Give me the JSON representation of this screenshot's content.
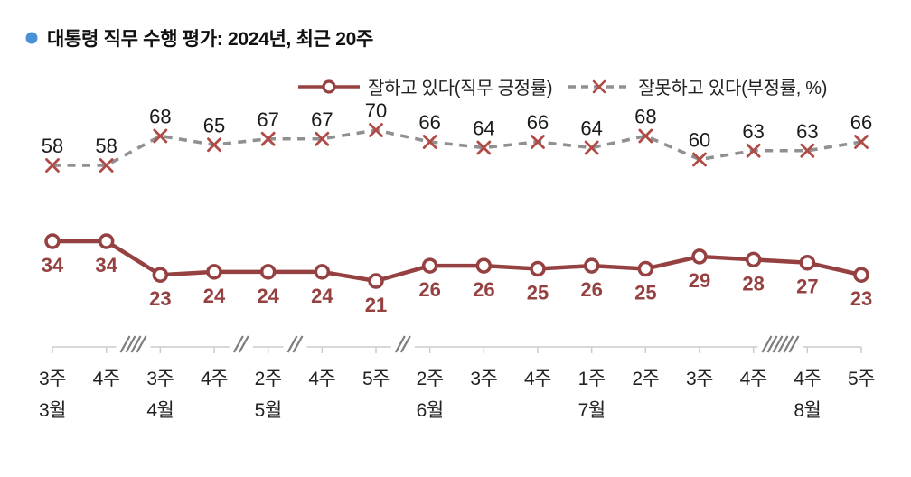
{
  "header": {
    "title": "대통령 직무 수행 평가: 2024년, 최근 20주",
    "bullet_color": "#4a90d6"
  },
  "legend": {
    "position": "top-right",
    "items": [
      {
        "label": "잘하고 있다(직무 긍정률)"
      },
      {
        "label": "잘못하고 있다(부정률, %)"
      }
    ]
  },
  "colors": {
    "positive": "#954141",
    "negative_line": "#909090",
    "negative_marker": "#b04b47",
    "axis": "#cbcbcb",
    "axis_break": "#7d7d7d",
    "value_label_dark": "#1a1a1a",
    "axis_text": "#222222"
  },
  "chart_data": {
    "type": "line",
    "title": "대통령 직무 수행 평가: 2024년, 최근 20주",
    "unit": "%",
    "grid": false,
    "legend_position": "top-right",
    "categories": [
      "3주",
      "4주",
      "3주",
      "4주",
      "2주",
      "4주",
      "5주",
      "2주",
      "3주",
      "4주",
      "1주",
      "2주",
      "3주",
      "4주",
      "4주",
      "5주"
    ],
    "month_labels": [
      {
        "label": "3월",
        "index": 0
      },
      {
        "label": "4월",
        "index": 2
      },
      {
        "label": "5월",
        "index": 4
      },
      {
        "label": "6월",
        "index": 7
      },
      {
        "label": "7월",
        "index": 10
      },
      {
        "label": "8월",
        "index": 14
      }
    ],
    "axis_breaks": [
      {
        "after_index": 1,
        "slashes": 4
      },
      {
        "after_index": 3,
        "slashes": 2
      },
      {
        "after_index": 4,
        "slashes": 2
      },
      {
        "after_index": 6,
        "slashes": 2
      },
      {
        "after_index": 13,
        "slashes": 6
      }
    ],
    "series": [
      {
        "name": "잘하고 있다(직무 긍정률)",
        "values": [
          34,
          34,
          23,
          24,
          24,
          24,
          21,
          26,
          26,
          25,
          26,
          25,
          29,
          28,
          27,
          23
        ],
        "line": "solid",
        "color": "#954141",
        "marker": "circle",
        "marker_color": "#954141",
        "label_color": "#954141",
        "label_position": "below",
        "position": "bottom"
      },
      {
        "name": "잘못하고 있다(부정률, %)",
        "values": [
          58,
          58,
          68,
          65,
          67,
          67,
          70,
          66,
          64,
          66,
          64,
          68,
          60,
          63,
          63,
          66
        ],
        "line": "dashed",
        "color": "#909090",
        "marker": "x",
        "marker_color": "#b04b47",
        "label_color": "#1a1a1a",
        "label_position": "above",
        "position": "top"
      }
    ]
  }
}
